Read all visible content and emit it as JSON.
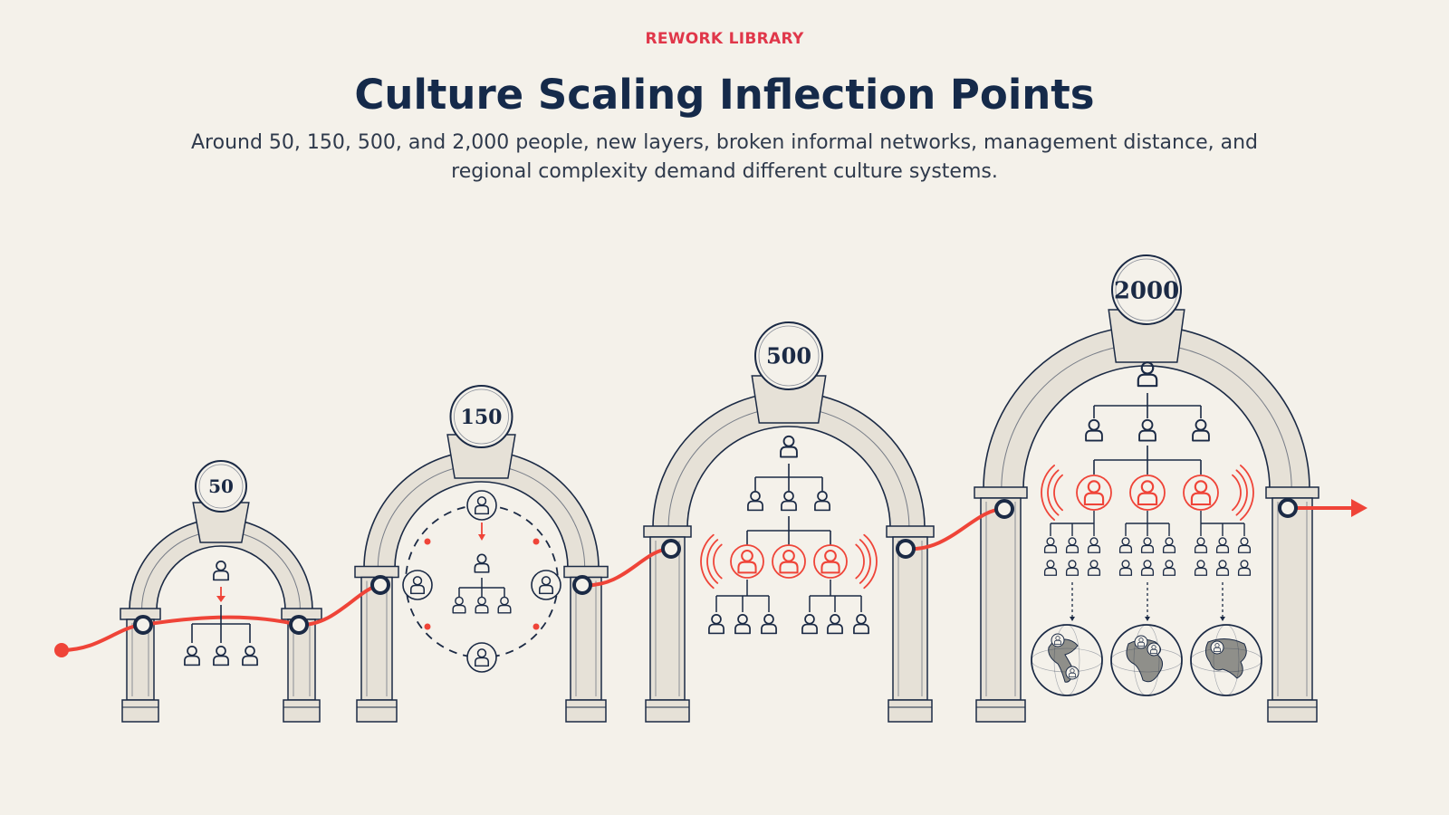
{
  "header": {
    "eyebrow": "REWORK LIBRARY",
    "title": "Culture Scaling Inflection Points",
    "subtitle": "Around 50, 150, 500, and 2,000 people, new layers, broken informal networks, management distance, and regional complexity demand different culture systems."
  },
  "stages": [
    {
      "label": "50"
    },
    {
      "label": "150"
    },
    {
      "label": "500"
    },
    {
      "label": "2000"
    }
  ],
  "colors": {
    "background": "#f4f1ea",
    "ink": "#1b2a45",
    "accent": "#ef4438",
    "stone": "#e6e1d7"
  },
  "icons": [
    "person-icon",
    "globe-icon",
    "signal-icon",
    "arrow-icon"
  ]
}
